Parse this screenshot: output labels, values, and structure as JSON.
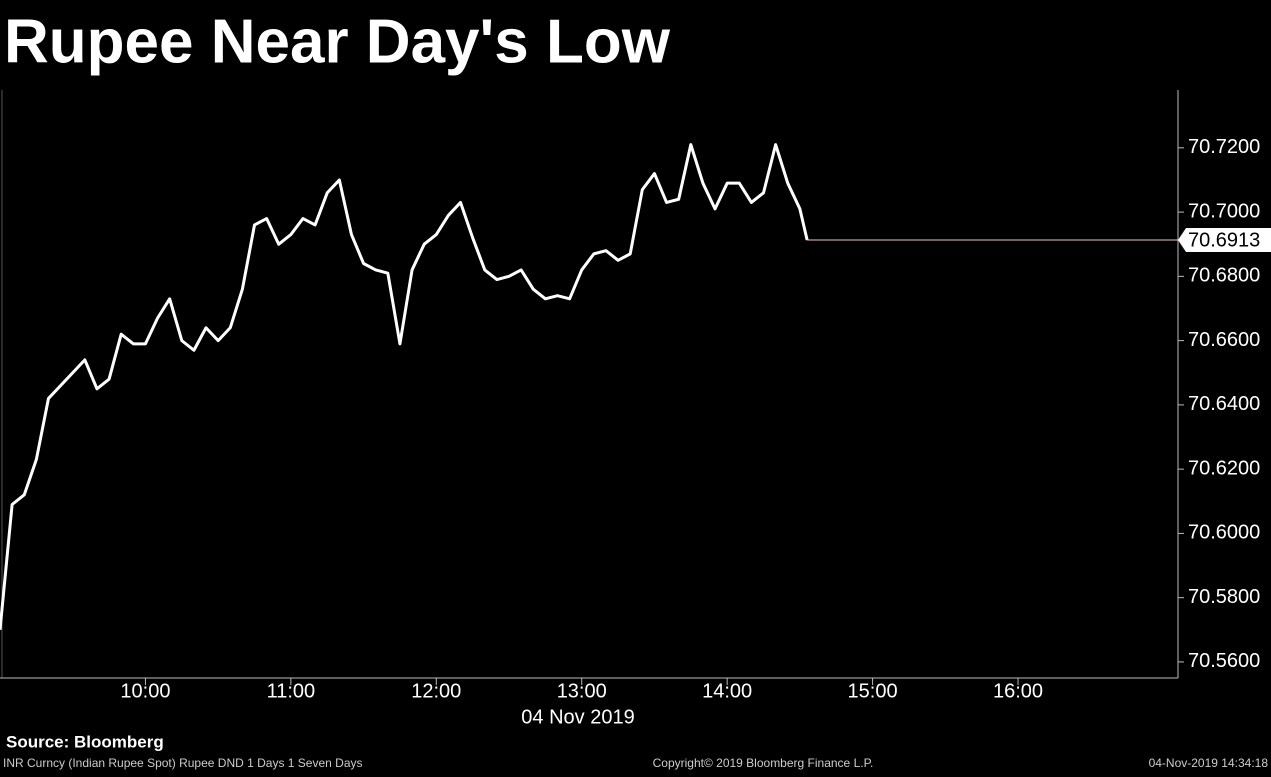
{
  "chart_data": {
    "type": "line",
    "title": "Rupee Near Day's Low",
    "x_label": "04 Nov 2019",
    "x": [
      "09:00",
      "09:05",
      "09:10",
      "09:15",
      "09:20",
      "09:25",
      "09:30",
      "09:35",
      "09:40",
      "09:45",
      "09:50",
      "09:55",
      "10:00",
      "10:05",
      "10:10",
      "10:15",
      "10:20",
      "10:25",
      "10:30",
      "10:35",
      "10:40",
      "10:45",
      "10:50",
      "10:55",
      "11:00",
      "11:05",
      "11:10",
      "11:15",
      "11:20",
      "11:25",
      "11:30",
      "11:35",
      "11:40",
      "11:45",
      "11:50",
      "11:55",
      "12:00",
      "12:05",
      "12:10",
      "12:15",
      "12:20",
      "12:25",
      "12:30",
      "12:35",
      "12:40",
      "12:45",
      "12:50",
      "12:55",
      "13:00",
      "13:05",
      "13:10",
      "13:15",
      "13:20",
      "13:25",
      "13:30",
      "13:35",
      "13:40",
      "13:45",
      "13:50",
      "13:55",
      "14:00",
      "14:05",
      "14:10",
      "14:15",
      "14:20",
      "14:25",
      "14:30",
      "14:33"
    ],
    "series": [
      {
        "name": "INR Curncy",
        "color": "#ffffff",
        "values": [
          70.57,
          70.609,
          70.612,
          70.623,
          70.642,
          70.646,
          70.65,
          70.654,
          70.645,
          70.648,
          70.662,
          70.659,
          70.659,
          70.667,
          70.673,
          70.66,
          70.657,
          70.664,
          70.66,
          70.664,
          70.676,
          70.696,
          70.698,
          70.69,
          70.693,
          70.698,
          70.696,
          70.706,
          70.71,
          70.693,
          70.684,
          70.682,
          70.681,
          70.659,
          70.682,
          70.69,
          70.693,
          70.699,
          70.703,
          70.692,
          70.682,
          70.679,
          70.68,
          70.682,
          70.676,
          70.673,
          70.674,
          70.673,
          70.682,
          70.687,
          70.688,
          70.685,
          70.687,
          70.707,
          70.712,
          70.703,
          70.704,
          70.721,
          70.709,
          70.701,
          70.709,
          70.709,
          70.703,
          70.706,
          70.721,
          70.709,
          70.701,
          70.6913
        ]
      }
    ],
    "last_line_color": "#f2c4b4",
    "xlim": [
      "09:00",
      "17:06"
    ],
    "xticks": [
      "10:00",
      "11:00",
      "12:00",
      "13:00",
      "14:00",
      "15:00",
      "16:00"
    ],
    "ylim": [
      70.555,
      70.738
    ],
    "yticks": [
      {
        "value": 70.56,
        "label": "70.5600"
      },
      {
        "value": 70.58,
        "label": "70.5800"
      },
      {
        "value": 70.6,
        "label": "70.6000"
      },
      {
        "value": 70.62,
        "label": "70.6200"
      },
      {
        "value": 70.64,
        "label": "70.6400"
      },
      {
        "value": 70.66,
        "label": "70.6600"
      },
      {
        "value": 70.68,
        "label": "70.6800"
      },
      {
        "value": 70.7,
        "label": "70.7000"
      },
      {
        "value": 70.72,
        "label": "70.7200"
      }
    ],
    "source": "Source: Bloomberg",
    "footer_left": "INR Curncy (Indian Rupee Spot) Rupee DND 1 Days 1 Seven Days",
    "footer_center": "Copyright© 2019 Bloomberg Finance L.P.",
    "footer_right": "04-Nov-2019 14:34:18"
  }
}
